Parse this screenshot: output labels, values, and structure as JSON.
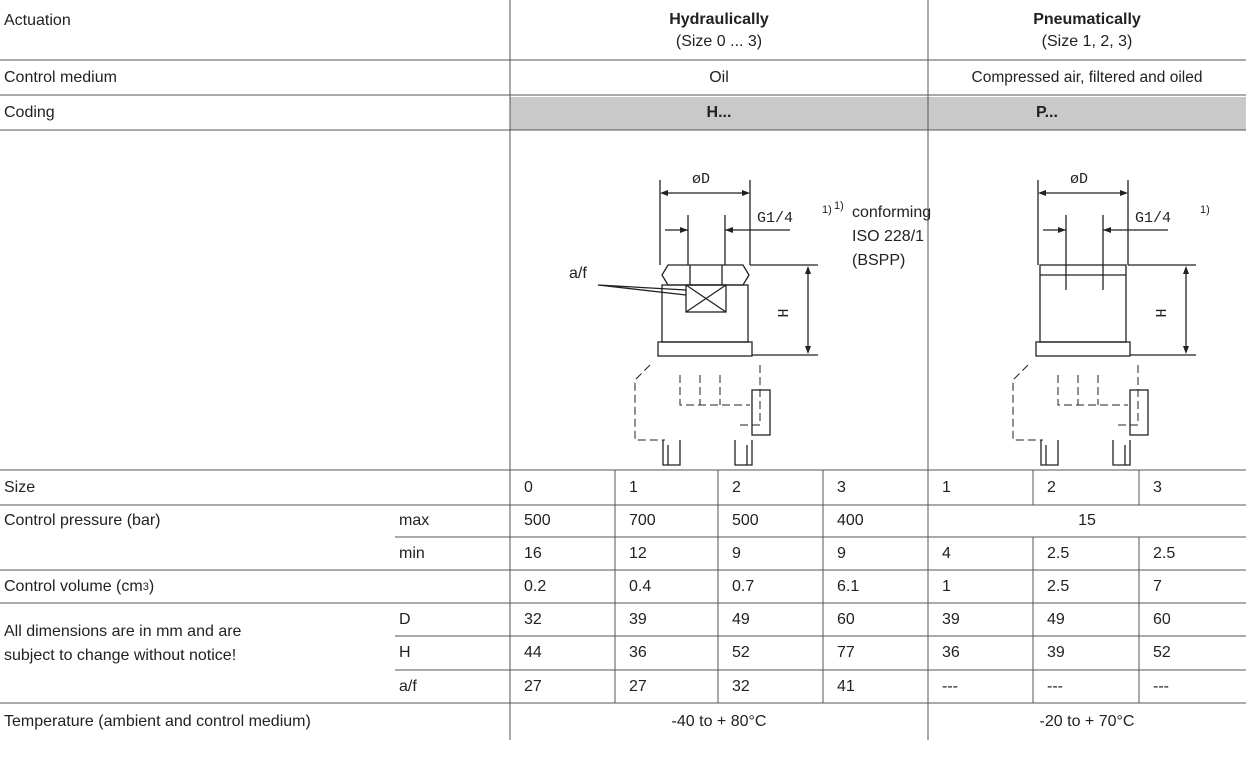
{
  "header": {
    "actuation": "Actuation",
    "hydraulic_title": "Hydraulically",
    "hydraulic_sizes": "(Size 0 ... 3)",
    "pneumatic_title": "Pneumatically",
    "pneumatic_sizes": "(Size 1, 2, 3)"
  },
  "control_medium": {
    "label": "Control medium",
    "hydraulic": "Oil",
    "pneumatic": "Compressed air, filtered and oiled"
  },
  "coding": {
    "label": "Coding",
    "hydraulic": "H...",
    "pneumatic": "P..."
  },
  "drawing": {
    "diameter": "øD",
    "thread": "G1/4",
    "thread_mark": "1)",
    "height": "H",
    "af": "a/f",
    "footnote": {
      "mark": "1)",
      "lines": [
        "conforming",
        "ISO 228/1",
        "(BSPP)"
      ]
    }
  },
  "table": {
    "size": {
      "label": "Size",
      "values": [
        0,
        1,
        2,
        3,
        1,
        2,
        3
      ]
    },
    "pressure": {
      "label": "Control pressure (bar)",
      "max": {
        "label": "max",
        "hydraulic": [
          500,
          700,
          500,
          400
        ],
        "pneumatic": 15
      },
      "min": {
        "label": "min",
        "values": [
          16,
          12,
          9,
          9,
          4,
          2.5,
          2.5
        ]
      }
    },
    "volume": {
      "label": "Control volume  (cm",
      "sup": "3",
      "end": ")",
      "values": [
        0.2,
        0.4,
        0.7,
        6.1,
        1,
        2.5,
        7
      ]
    },
    "dimensions": {
      "note": [
        "All dimensions are in mm and are",
        "subject to change without notice!"
      ],
      "rows": [
        {
          "label": "D",
          "values": [
            32,
            39,
            49,
            60,
            39,
            49,
            60
          ]
        },
        {
          "label": "H",
          "values": [
            44,
            36,
            52,
            77,
            36,
            39,
            52
          ]
        },
        {
          "label": "a/f",
          "values": [
            27,
            27,
            32,
            41,
            "---",
            "---",
            "---"
          ]
        }
      ]
    },
    "temperature": {
      "label": "Temperature (ambient and control medium)",
      "hydraulic": "-40 to + 80°C",
      "pneumatic": "-20 to + 70°C"
    }
  }
}
